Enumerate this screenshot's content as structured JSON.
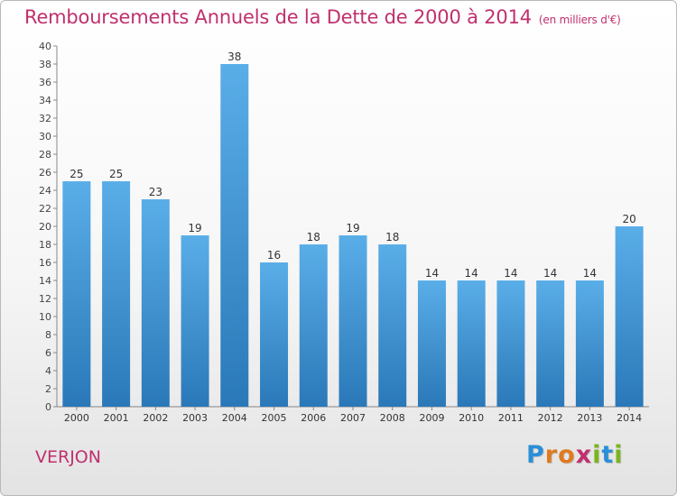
{
  "header": {
    "title": "Remboursements Annuels de la Dette de 2000 à 2014",
    "subtitle": "(en milliers d'€)"
  },
  "footer": {
    "commune": "VERJON",
    "logo_letters": [
      "P",
      "r",
      "o",
      "x",
      "i",
      "t",
      "i"
    ],
    "logo_colors": [
      "#2a8fd6",
      "#e07a1f",
      "#e07a1f",
      "#c0306e",
      "#7ab520",
      "#2a8fd6",
      "#7ab520"
    ]
  },
  "colors": {
    "accent": "#c0306e",
    "bar_top": "#5aaee8",
    "bar_bottom": "#2a78b8"
  },
  "chart_data": {
    "type": "bar",
    "title": "Remboursements Annuels de la Dette de 2000 à 2014",
    "categories": [
      "2000",
      "2001",
      "2002",
      "2003",
      "2004",
      "2005",
      "2006",
      "2007",
      "2008",
      "2009",
      "2010",
      "2011",
      "2012",
      "2013",
      "2014"
    ],
    "values": [
      25,
      25,
      23,
      19,
      38,
      16,
      18,
      19,
      18,
      14,
      14,
      14,
      14,
      14,
      20
    ],
    "ylim": [
      0,
      40
    ],
    "yticks": [
      0,
      2,
      4,
      6,
      8,
      10,
      12,
      14,
      16,
      18,
      20,
      22,
      24,
      26,
      28,
      30,
      32,
      34,
      36,
      38,
      40
    ],
    "grid": false,
    "data_labels": true
  }
}
